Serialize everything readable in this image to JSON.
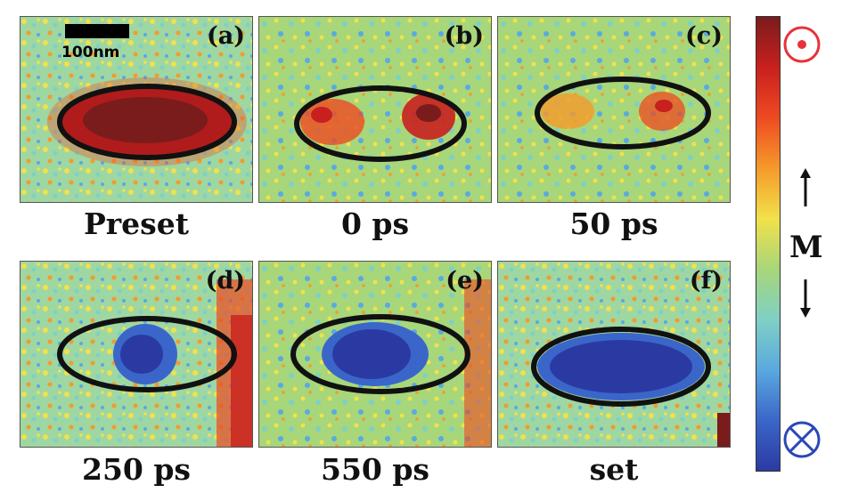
{
  "scale_bar": {
    "label": "100nm"
  },
  "panels": [
    {
      "id": "a",
      "label": "(a)",
      "caption": "Preset",
      "state": "up"
    },
    {
      "id": "b",
      "label": "(b)",
      "caption": "0 ps",
      "state": "partial-up"
    },
    {
      "id": "c",
      "label": "(c)",
      "caption": "50 ps",
      "state": "weak-up"
    },
    {
      "id": "d",
      "label": "(d)",
      "caption": "250 ps",
      "state": "partial-down"
    },
    {
      "id": "e",
      "label": "(e)",
      "caption": "550 ps",
      "state": "mostly-down"
    },
    {
      "id": "f",
      "label": "(f)",
      "caption": "set",
      "state": "down"
    }
  ],
  "colorbar": {
    "label": "M",
    "top_symbol": "out-of-plane-dot-icon",
    "bottom_symbol": "into-plane-cross-icon",
    "colors": [
      "#7a1c1c",
      "#c8201e",
      "#ee4a22",
      "#f59a2a",
      "#f2e14a",
      "#a8d67a",
      "#7fd0c4",
      "#5aa9df",
      "#3b66c9",
      "#2b3aa3"
    ],
    "symbol_color": "#e8323a",
    "symbol_color_bottom": "#2b48b8"
  }
}
